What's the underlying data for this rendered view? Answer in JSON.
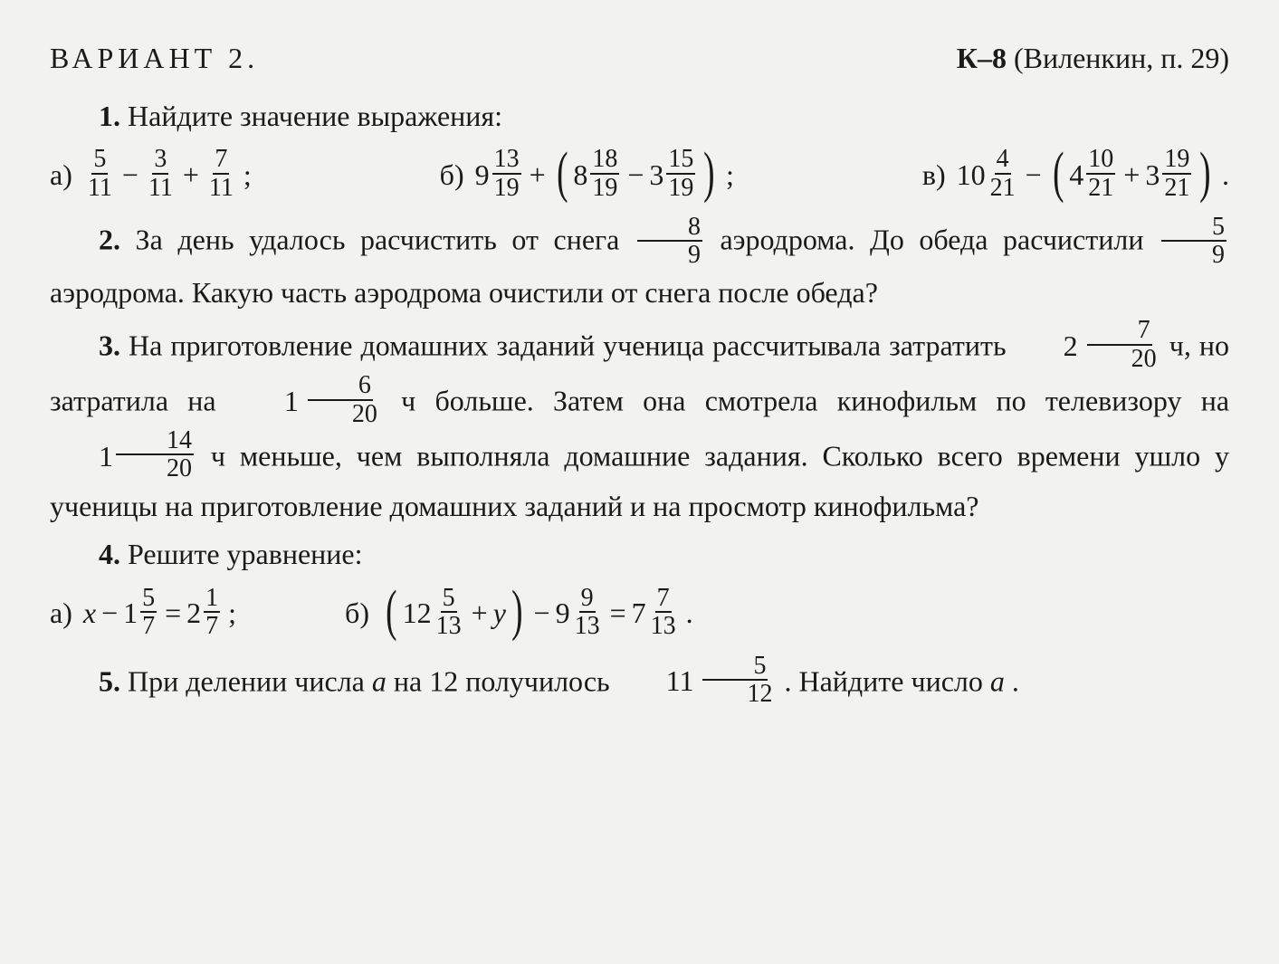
{
  "header": {
    "variant": "ВАРИАНТ 2.",
    "kref_bold": "К–8",
    "kref_rest": " (Виленкин, п. 29)"
  },
  "p1": {
    "num": "1.",
    "text": " Найдите значение выражения:"
  },
  "p1a": {
    "label": "а)",
    "f1": {
      "n": "5",
      "d": "11"
    },
    "f2": {
      "n": "3",
      "d": "11"
    },
    "f3": {
      "n": "7",
      "d": "11"
    },
    "end": ";"
  },
  "p1b": {
    "label": "б)",
    "m1": {
      "w": "9",
      "n": "13",
      "d": "19"
    },
    "m2": {
      "w": "8",
      "n": "18",
      "d": "19"
    },
    "m3": {
      "w": "3",
      "n": "15",
      "d": "19"
    },
    "end": ";"
  },
  "p1c": {
    "label": "в)",
    "m1": {
      "w": "10",
      "n": "4",
      "d": "21"
    },
    "m2": {
      "w": "4",
      "n": "10",
      "d": "21"
    },
    "m3": {
      "w": "3",
      "n": "19",
      "d": "21"
    },
    "end": "."
  },
  "p2": {
    "num": "2.",
    "t1": " За день удалось расчистить от снега ",
    "f1": {
      "n": "8",
      "d": "9"
    },
    "t2": " аэродрома. До обеда расчистили ",
    "f2": {
      "n": "5",
      "d": "9"
    },
    "t3": " аэродрома. Какую часть аэродрома очистили от снега после обеда?"
  },
  "p3": {
    "num": "3.",
    "t1": " На приготовление домашних заданий ученица рассчитывала затратить ",
    "m1": {
      "w": "2",
      "n": "7",
      "d": "20"
    },
    "t2": " ч, но затратила на ",
    "m2": {
      "w": "1",
      "n": "6",
      "d": "20"
    },
    "t3": " ч больше. Затем она смотрела кинофильм по телевизору на ",
    "m3": {
      "w": "1",
      "n": "14",
      "d": "20"
    },
    "t4": " ч меньше, чем выпол­няла домашние задания. Сколько всего времени ушло у ученицы на приготовление домашних заданий и на просмотр кинофильма?"
  },
  "p4": {
    "num": "4.",
    "text": " Решите уравнение:"
  },
  "p4a": {
    "label": "а)",
    "var": "x",
    "m1": {
      "w": "1",
      "n": "5",
      "d": "7"
    },
    "m2": {
      "w": "2",
      "n": "1",
      "d": "7"
    },
    "end": ";"
  },
  "p4b": {
    "label": "б)",
    "m1": {
      "w": "12",
      "n": "5",
      "d": "13"
    },
    "var": "y",
    "m2": {
      "w": "9",
      "n": "9",
      "d": "13"
    },
    "m3": {
      "w": "7",
      "n": "7",
      "d": "13"
    },
    "end": "."
  },
  "p5": {
    "num": "5.",
    "t1": " При делении числа ",
    "var": "a",
    "t2": " на 12 получилось ",
    "m1": {
      "w": "11",
      "n": "5",
      "d": "12"
    },
    "t3": ". Найдите число ",
    "var2": "a",
    "t4": "."
  },
  "ops": {
    "minus": "−",
    "plus": "+",
    "eq": "="
  }
}
